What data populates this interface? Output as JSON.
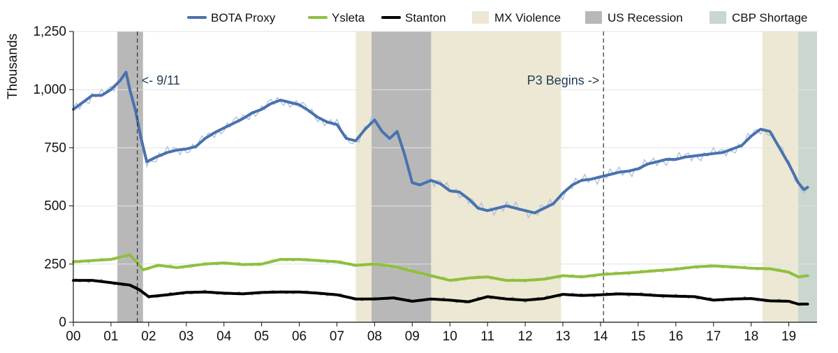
{
  "chart_data": {
    "type": "line",
    "title": "",
    "xlabel": "",
    "ylabel": "Thousands",
    "xlim": [
      2000,
      2019.75
    ],
    "ylim": [
      0,
      1250
    ],
    "x_tick_labels": [
      "00",
      "01",
      "02",
      "03",
      "04",
      "05",
      "06",
      "07",
      "08",
      "09",
      "10",
      "11",
      "12",
      "13",
      "14",
      "15",
      "16",
      "17",
      "18",
      "19"
    ],
    "x_tick_values": [
      2000,
      2001,
      2002,
      2003,
      2004,
      2005,
      2006,
      2007,
      2008,
      2009,
      2010,
      2011,
      2012,
      2013,
      2014,
      2015,
      2016,
      2017,
      2018,
      2019
    ],
    "y_ticks": [
      0,
      250,
      500,
      750,
      1000,
      1250
    ],
    "y_tick_labels": [
      "0",
      "250",
      "500",
      "750",
      "1,000",
      "1,250"
    ],
    "grid": "horizontal",
    "legend_position": "top",
    "shaded_periods": [
      {
        "name": "MX Violence",
        "color": "#ece8d3",
        "ranges": [
          [
            2007.5,
            2012.95
          ],
          [
            2018.3,
            2019.25
          ]
        ]
      },
      {
        "name": "US Recession",
        "color": "#b8b8b8",
        "ranges": [
          [
            2001.17,
            2001.85
          ],
          [
            2007.92,
            2009.5
          ]
        ]
      },
      {
        "name": "CBP Shortage",
        "color": "#c9d7cf",
        "ranges": [
          [
            2019.25,
            2019.75
          ]
        ]
      }
    ],
    "vlines": [
      {
        "x": 2001.7,
        "label": "<- 9/11",
        "label_y": 1040
      },
      {
        "x": 2014.08,
        "label": "P3 Begins ->",
        "label_y": 1040
      }
    ],
    "series": [
      {
        "name": "BOTA Proxy",
        "color": "#4a72ad",
        "raw_color": "#a9bfdb",
        "x": [
          2000,
          2000.25,
          2000.5,
          2000.75,
          2001,
          2001.25,
          2001.4,
          2001.5,
          2001.65,
          2001.8,
          2001.95,
          2002.2,
          2002.5,
          2002.75,
          2003,
          2003.25,
          2003.5,
          2003.75,
          2004,
          2004.25,
          2004.5,
          2004.75,
          2005,
          2005.25,
          2005.5,
          2005.75,
          2006,
          2006.25,
          2006.5,
          2006.75,
          2007,
          2007.25,
          2007.5,
          2007.75,
          2008,
          2008.2,
          2008.4,
          2008.6,
          2008.8,
          2009,
          2009.2,
          2009.5,
          2009.75,
          2010,
          2010.25,
          2010.5,
          2010.75,
          2011,
          2011.25,
          2011.5,
          2011.75,
          2012,
          2012.25,
          2012.5,
          2012.75,
          2013,
          2013.25,
          2013.5,
          2013.75,
          2014,
          2014.25,
          2014.5,
          2014.75,
          2015,
          2015.25,
          2015.5,
          2015.75,
          2016,
          2016.25,
          2016.5,
          2016.75,
          2017,
          2017.25,
          2017.5,
          2017.75,
          2018,
          2018.25,
          2018.5,
          2018.75,
          2019,
          2019.25,
          2019.4,
          2019.5
        ],
        "values": [
          915,
          945,
          975,
          975,
          1000,
          1040,
          1075,
          1000,
          910,
          790,
          690,
          710,
          730,
          740,
          745,
          755,
          790,
          815,
          835,
          855,
          875,
          900,
          915,
          940,
          955,
          945,
          935,
          910,
          880,
          860,
          850,
          790,
          780,
          830,
          870,
          820,
          790,
          820,
          720,
          600,
          590,
          610,
          595,
          565,
          560,
          530,
          490,
          480,
          490,
          500,
          490,
          480,
          470,
          490,
          510,
          555,
          590,
          610,
          615,
          625,
          635,
          645,
          650,
          660,
          680,
          690,
          700,
          700,
          710,
          715,
          720,
          725,
          730,
          745,
          760,
          800,
          830,
          820,
          750,
          680,
          600,
          570,
          580
        ]
      },
      {
        "name": "Ysleta",
        "color": "#8fbf3f",
        "raw_color": "#c4dd9a",
        "x": [
          2000,
          2000.5,
          2001,
          2001.25,
          2001.5,
          2001.7,
          2001.85,
          2002.25,
          2002.75,
          2003,
          2003.5,
          2004,
          2004.5,
          2005,
          2005.5,
          2006,
          2006.5,
          2007,
          2007.5,
          2008,
          2008.5,
          2009,
          2009.5,
          2010,
          2010.5,
          2011,
          2011.5,
          2012,
          2012.5,
          2013,
          2013.5,
          2014,
          2014.5,
          2015,
          2015.5,
          2016,
          2016.5,
          2017,
          2017.5,
          2018,
          2018.5,
          2019,
          2019.25,
          2019.5
        ],
        "values": [
          260,
          265,
          270,
          280,
          290,
          255,
          225,
          245,
          235,
          240,
          250,
          255,
          248,
          250,
          270,
          270,
          265,
          260,
          245,
          250,
          240,
          220,
          200,
          180,
          190,
          195,
          180,
          180,
          185,
          200,
          195,
          205,
          210,
          215,
          222,
          228,
          238,
          242,
          238,
          232,
          230,
          215,
          195,
          200
        ]
      },
      {
        "name": "Stanton",
        "color": "#000000",
        "raw_color": "#9a9a9a",
        "x": [
          2000,
          2000.5,
          2001,
          2001.25,
          2001.5,
          2001.75,
          2002,
          2002.5,
          2003,
          2003.5,
          2004,
          2004.5,
          2005,
          2005.5,
          2006,
          2006.5,
          2007,
          2007.5,
          2008,
          2008.5,
          2009,
          2009.5,
          2010,
          2010.5,
          2011,
          2011.5,
          2012,
          2012.5,
          2013,
          2013.5,
          2014,
          2014.5,
          2015,
          2015.5,
          2016,
          2016.5,
          2017,
          2017.5,
          2018,
          2018.5,
          2019,
          2019.25,
          2019.5
        ],
        "values": [
          180,
          180,
          170,
          165,
          160,
          140,
          110,
          118,
          128,
          130,
          125,
          122,
          128,
          130,
          130,
          125,
          118,
          100,
          100,
          105,
          90,
          100,
          95,
          88,
          110,
          100,
          95,
          102,
          120,
          115,
          118,
          122,
          120,
          115,
          112,
          110,
          95,
          100,
          102,
          92,
          90,
          78,
          78
        ]
      }
    ]
  }
}
